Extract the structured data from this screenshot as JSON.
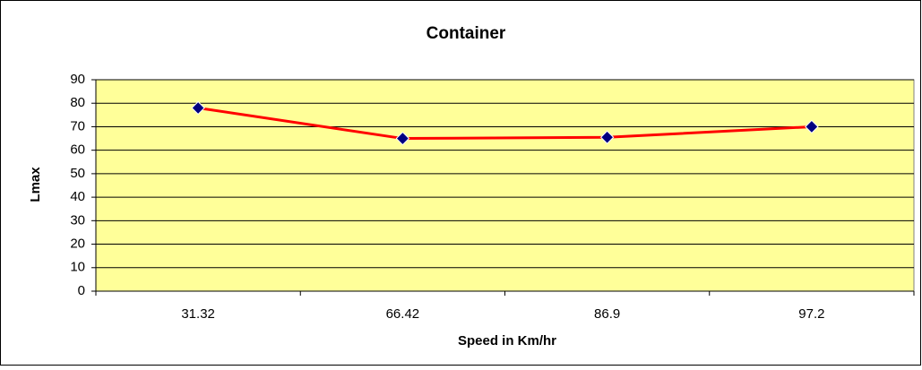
{
  "chart_data": {
    "type": "line",
    "title": "Container",
    "x_label": "Speed in Km/hr",
    "y_label": "Lmax",
    "categories": [
      "31.32",
      "66.42",
      "86.9",
      "97.2"
    ],
    "series": [
      {
        "name": "Lmax",
        "color": "#ff0000",
        "marker_color": "#000080",
        "values": [
          78,
          65,
          65.5,
          70
        ]
      }
    ],
    "ylim": [
      0,
      90
    ],
    "yticks": [
      0,
      10,
      20,
      30,
      40,
      50,
      60,
      70,
      80,
      90
    ],
    "grid": true,
    "plot_background": "#ffff99"
  }
}
